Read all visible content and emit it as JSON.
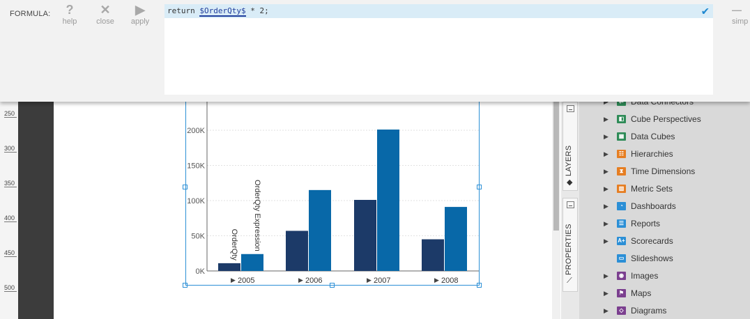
{
  "formula_bar": {
    "label": "FORMULA:",
    "buttons": [
      {
        "id": "help",
        "label": "help",
        "icon": "?"
      },
      {
        "id": "close",
        "label": "close",
        "icon": "✕"
      },
      {
        "id": "apply",
        "label": "apply",
        "icon": "▶"
      }
    ],
    "simplify_label": "simp",
    "formula_prefix": "return ",
    "formula_field": "$OrderQty$",
    "formula_suffix": " * 2;",
    "confirm_icon": "✔"
  },
  "ruler": [
    "250",
    "300",
    "350",
    "400",
    "450",
    "500"
  ],
  "chart_data": {
    "type": "bar",
    "categories": [
      "2005",
      "2006",
      "2007",
      "2008"
    ],
    "series": [
      {
        "name": "OrderQty",
        "values": [
          11000,
          57000,
          101000,
          45000
        ],
        "color": "#1c3a68"
      },
      {
        "name": "OrderQty Expression",
        "values": [
          24000,
          115000,
          201000,
          91000
        ],
        "color": "#0868a8"
      }
    ],
    "y_ticks": [
      "0K",
      "50K",
      "100K",
      "150K",
      "200K"
    ],
    "ylim": [
      0,
      250000
    ],
    "grid": true,
    "legend": "rotated labels above first bars",
    "category_marker": "▶"
  },
  "side_tabs": {
    "layers": "LAYERS",
    "properties": "PROPERTIES"
  },
  "data_panel": {
    "items": [
      {
        "label": "Data Connectors",
        "icon": "data-connectors-icon",
        "color": "#2e8b57",
        "glyph": "⇄",
        "arrow": true
      },
      {
        "label": "Cube Perspectives",
        "icon": "cube-perspectives-icon",
        "color": "#2e8b57",
        "glyph": "◧",
        "arrow": true
      },
      {
        "label": "Data Cubes",
        "icon": "data-cubes-icon",
        "color": "#2e8b57",
        "glyph": "▦",
        "arrow": true
      },
      {
        "label": "Hierarchies",
        "icon": "hierarchies-icon",
        "color": "#e67e22",
        "glyph": "☷",
        "arrow": true
      },
      {
        "label": "Time Dimensions",
        "icon": "time-dimensions-icon",
        "color": "#e67e22",
        "glyph": "⧗",
        "arrow": true
      },
      {
        "label": "Metric Sets",
        "icon": "metric-sets-icon",
        "color": "#e67e22",
        "glyph": "▥",
        "arrow": true
      },
      {
        "label": "Dashboards",
        "icon": "dashboards-icon",
        "color": "#2b8fd6",
        "glyph": "◔",
        "arrow": true
      },
      {
        "label": "Reports",
        "icon": "reports-icon",
        "color": "#2b8fd6",
        "glyph": "☰",
        "arrow": true
      },
      {
        "label": "Scorecards",
        "icon": "scorecards-icon",
        "color": "#2b8fd6",
        "glyph": "A+",
        "arrow": true
      },
      {
        "label": "Slideshows",
        "icon": "slideshows-icon",
        "color": "#2b8fd6",
        "glyph": "▭",
        "arrow": false
      },
      {
        "label": "Images",
        "icon": "images-icon",
        "color": "#7b3f8f",
        "glyph": "◉",
        "arrow": true
      },
      {
        "label": "Maps",
        "icon": "maps-icon",
        "color": "#7b3f8f",
        "glyph": "⚑",
        "arrow": true
      },
      {
        "label": "Diagrams",
        "icon": "diagrams-icon",
        "color": "#7b3f8f",
        "glyph": "◇",
        "arrow": true
      }
    ]
  }
}
